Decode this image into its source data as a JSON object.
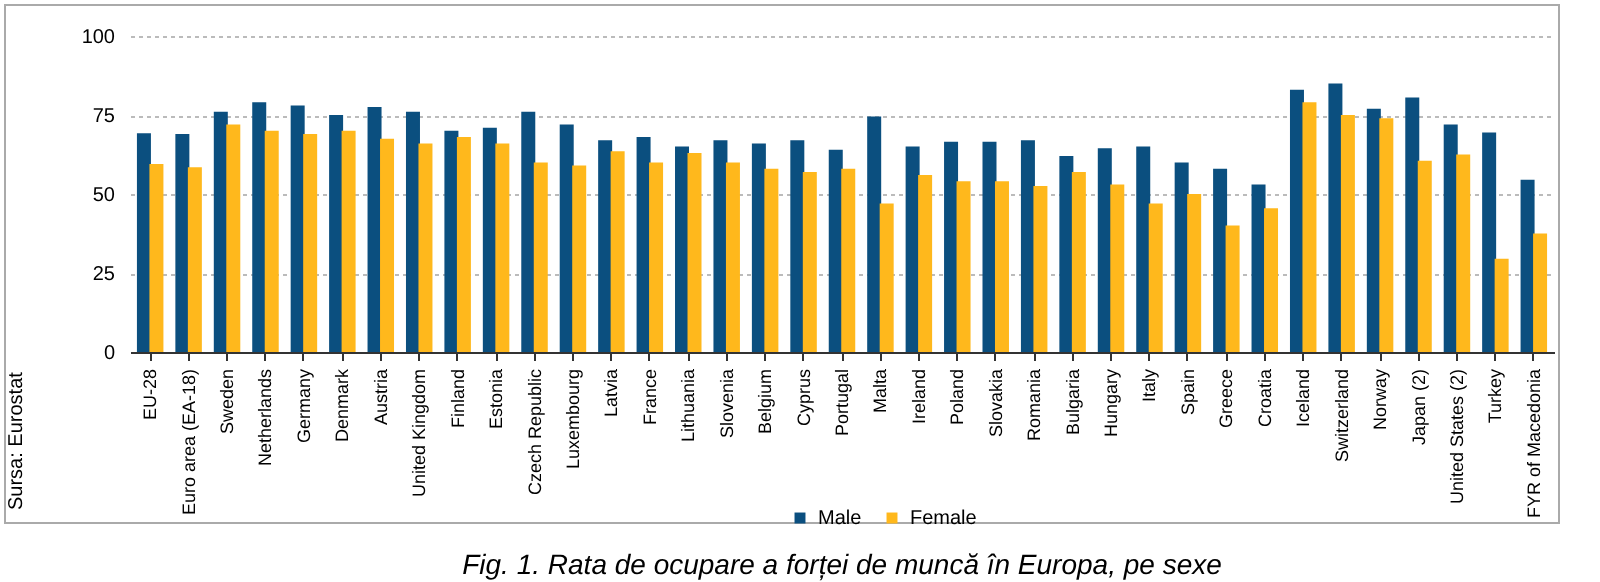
{
  "chart_data": {
    "type": "bar",
    "title": "Fig. 1. Rata de ocupare a forței de muncă în Europa, pe sexe",
    "annotations": [
      "Sursa: Eurostat"
    ],
    "categories": [
      "EU-28",
      "Euro area (EA-18)",
      "Sweden",
      "Netherlands",
      "Germany",
      "Denmark",
      "Austria",
      "United Kingdom",
      "Finland",
      "Estonia",
      "Czech Republic",
      "Luxembourg",
      "Latvia",
      "France",
      "Lithuania",
      "Slovenia",
      "Belgium",
      "Cyprus",
      "Portugal",
      "Malta",
      "Ireland",
      "Poland",
      "Slovakia",
      "Romania",
      "Bulgaria",
      "Hungary",
      "Italy",
      "Spain",
      "Greece",
      "Croatia",
      "Iceland",
      "Switzerland",
      "Norway",
      "Japan (2)",
      "United States (2)",
      "Turkey",
      "FYR of Macedonia"
    ],
    "series": [
      {
        "name": "Male",
        "color": "#0b4f7f",
        "values": [
          69.2,
          69,
          76,
          79,
          78,
          75,
          77.5,
          76,
          70,
          71,
          76,
          72,
          67,
          68,
          65,
          67,
          66,
          67,
          64,
          74.5,
          65,
          66.5,
          66.5,
          67,
          62,
          64.5,
          65,
          60,
          58,
          53,
          83,
          85,
          77,
          80.5,
          72,
          69.5,
          54.5
        ]
      },
      {
        "name": "Female",
        "color": "#ffb81c",
        "values": [
          59.5,
          58.5,
          72,
          70,
          69,
          70,
          67.5,
          66,
          68,
          66,
          60,
          59,
          63.5,
          60,
          63,
          60,
          58,
          57,
          58,
          47,
          56,
          54,
          54,
          52.5,
          57,
          53,
          47,
          50,
          40,
          45.5,
          79,
          75,
          74,
          60.5,
          62.5,
          29.5,
          37.5
        ]
      }
    ],
    "ylim": [
      0,
      100
    ],
    "yticks": [
      0,
      25,
      50,
      75,
      100
    ],
    "grid": "y",
    "legend": "bottom"
  }
}
